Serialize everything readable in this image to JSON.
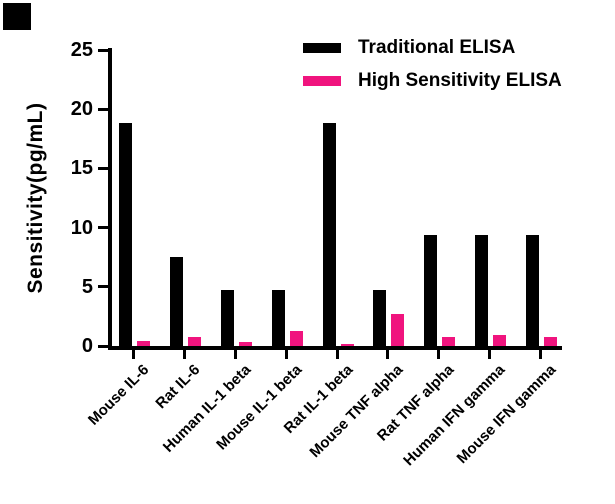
{
  "chart_data": {
    "type": "bar",
    "title": "",
    "ylabel": "Sensitivity(pg/mL)",
    "xlabel": "",
    "ylim": [
      0,
      25
    ],
    "yticks": [
      0,
      5,
      10,
      15,
      20,
      25
    ],
    "grid": false,
    "legend_position": "top-right",
    "categories": [
      "Mouse IL-6",
      "Rat IL-6",
      "Human IL-1 beta",
      "Mouse IL-1 beta",
      "Rat IL-1 beta",
      "Mouse TNF alpha",
      "Rat TNF alpha",
      "Human IFN gamma",
      "Mouse IFN gamma"
    ],
    "series": [
      {
        "name": "Traditional ELISA",
        "color": "#000000",
        "values": [
          18.8,
          7.5,
          4.7,
          4.7,
          18.8,
          4.7,
          9.4,
          9.4,
          9.4
        ]
      },
      {
        "name": "High Sensitivity ELISA",
        "color": "#F0147E",
        "values": [
          0.4,
          0.75,
          0.3,
          1.3,
          0.15,
          2.7,
          0.8,
          0.9,
          0.8
        ]
      }
    ]
  }
}
